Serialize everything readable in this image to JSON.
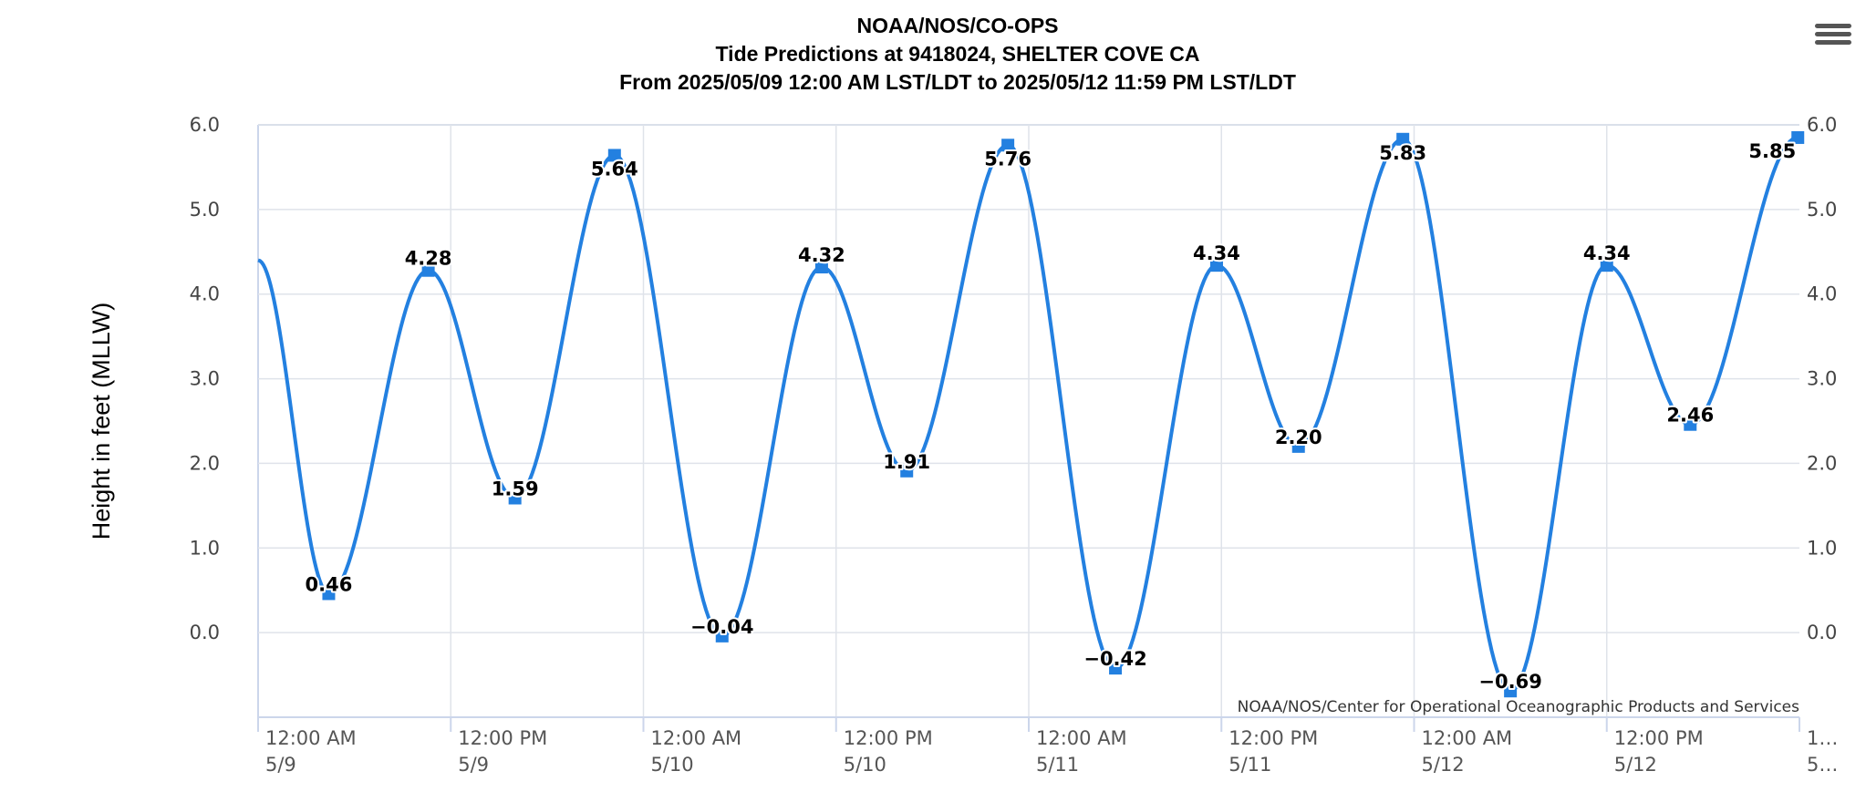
{
  "title_lines": [
    "NOAA/NOS/CO-OPS",
    "Tide Predictions at 9418024, SHELTER COVE CA",
    "From 2025/05/09 12:00 AM LST/LDT to 2025/05/12 11:59 PM LST/LDT"
  ],
  "credit": "NOAA/NOS/Center for Operational Oceanographic Products and Services",
  "menu": {
    "icon": "hamburger-menu-icon"
  },
  "colors": {
    "series": "#2380e0",
    "grid": "#dfe3ea",
    "axis": "#ccd6eb"
  },
  "chart_data": {
    "type": "line",
    "ylabel": "Height in feet (MLLW)",
    "ylim": [
      -1.0,
      6.0
    ],
    "yticks": [
      "6.0",
      "5.0",
      "4.0",
      "3.0",
      "2.0",
      "1.0",
      "0.0"
    ],
    "xlim": [
      "2025-05-09 00:00",
      "2025-05-13 00:00"
    ],
    "xticks": [
      {
        "line1": "12:00 AM",
        "line2": "5/9"
      },
      {
        "line1": "12:00 PM",
        "line2": "5/9"
      },
      {
        "line1": "12:00 AM",
        "line2": "5/10"
      },
      {
        "line1": "12:00 PM",
        "line2": "5/10"
      },
      {
        "line1": "12:00 AM",
        "line2": "5/11"
      },
      {
        "line1": "12:00 PM",
        "line2": "5/11"
      },
      {
        "line1": "12:00 AM",
        "line2": "5/12"
      },
      {
        "line1": "12:00 PM",
        "line2": "5/12"
      },
      {
        "line1": "1…",
        "line2": "5…"
      }
    ],
    "grid": true,
    "series": [
      {
        "points": [
          {
            "x": "2025-05-09 00:00",
            "y": 4.4,
            "label": ""
          },
          {
            "x": "2025-05-09 04:24",
            "y": 0.46,
            "label": "0.46"
          },
          {
            "x": "2025-05-09 10:36",
            "y": 4.28,
            "label": "4.28"
          },
          {
            "x": "2025-05-09 16:00",
            "y": 1.59,
            "label": "1.59"
          },
          {
            "x": "2025-05-09 22:12",
            "y": 5.64,
            "label": "5.64"
          },
          {
            "x": "2025-05-10 04:54",
            "y": -0.04,
            "label": "-0.04"
          },
          {
            "x": "2025-05-10 11:06",
            "y": 4.32,
            "label": "4.32"
          },
          {
            "x": "2025-05-10 16:24",
            "y": 1.91,
            "label": "1.91"
          },
          {
            "x": "2025-05-10 22:42",
            "y": 5.76,
            "label": "5.76"
          },
          {
            "x": "2025-05-11 05:24",
            "y": -0.42,
            "label": "-0.42"
          },
          {
            "x": "2025-05-11 11:42",
            "y": 4.34,
            "label": "4.34"
          },
          {
            "x": "2025-05-11 16:48",
            "y": 2.2,
            "label": "2.20"
          },
          {
            "x": "2025-05-11 23:18",
            "y": 5.83,
            "label": "5.83"
          },
          {
            "x": "2025-05-12 06:00",
            "y": -0.69,
            "label": "-0.69"
          },
          {
            "x": "2025-05-12 12:00",
            "y": 4.34,
            "label": "4.34"
          },
          {
            "x": "2025-05-12 17:12",
            "y": 2.46,
            "label": "2.46"
          },
          {
            "x": "2025-05-12 23:54",
            "y": 5.85,
            "label": "5.85"
          }
        ]
      }
    ]
  }
}
